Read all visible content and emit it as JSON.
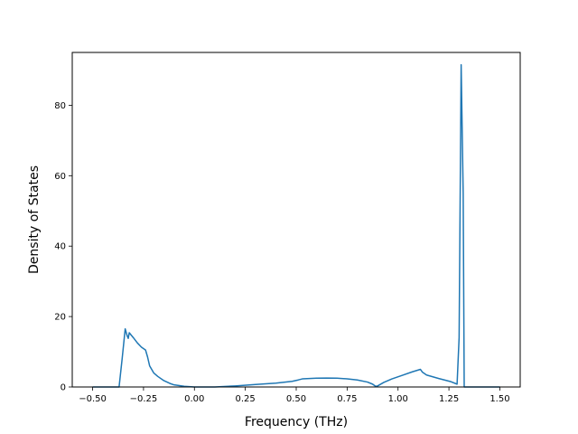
{
  "chart_data": {
    "type": "line",
    "title": "",
    "xlabel": "Frequency (THz)",
    "ylabel": "Density of States",
    "xlim": [
      -0.6,
      1.6
    ],
    "ylim": [
      0,
      95
    ],
    "xticks": [
      -0.5,
      -0.25,
      0.0,
      0.25,
      0.5,
      0.75,
      1.0,
      1.25,
      1.5
    ],
    "xtick_labels": [
      "−0.50",
      "−0.25",
      "0.00",
      "0.25",
      "0.50",
      "0.75",
      "1.00",
      "1.25",
      "1.50"
    ],
    "yticks": [
      0,
      20,
      40,
      60,
      80
    ],
    "ytick_labels": [
      "0",
      "20",
      "40",
      "60",
      "80"
    ],
    "grid": false,
    "line_color": "#1f77b4",
    "series": [
      {
        "x": [
          -0.5,
          -0.37,
          -0.355,
          -0.34,
          -0.33,
          -0.325,
          -0.32,
          -0.3,
          -0.28,
          -0.26,
          -0.24,
          -0.23,
          -0.22,
          -0.2,
          -0.18,
          -0.15,
          -0.12,
          -0.1,
          -0.05,
          0.0,
          0.05,
          0.1,
          0.2,
          0.3,
          0.4,
          0.48,
          0.51,
          0.53,
          0.6,
          0.65,
          0.7,
          0.75,
          0.8,
          0.85,
          0.875,
          0.89,
          0.9,
          0.93,
          0.97,
          1.02,
          1.07,
          1.11,
          1.12,
          1.14,
          1.2,
          1.26,
          1.29,
          1.3,
          1.31,
          1.32,
          1.325,
          1.35,
          1.5
        ],
        "y": [
          0,
          0,
          8,
          16.5,
          14.5,
          13.8,
          15.4,
          14,
          12.5,
          11.3,
          10.5,
          8.5,
          6,
          4,
          3,
          1.8,
          1,
          0.6,
          0.2,
          0,
          0,
          0,
          0.3,
          0.7,
          1.1,
          1.6,
          2.0,
          2.3,
          2.5,
          2.55,
          2.5,
          2.3,
          2.0,
          1.4,
          0.8,
          0.2,
          0.3,
          1.3,
          2.3,
          3.3,
          4.3,
          5.0,
          4.2,
          3.4,
          2.4,
          1.5,
          0.8,
          14,
          91.5,
          55,
          0,
          0,
          0
        ]
      }
    ]
  }
}
